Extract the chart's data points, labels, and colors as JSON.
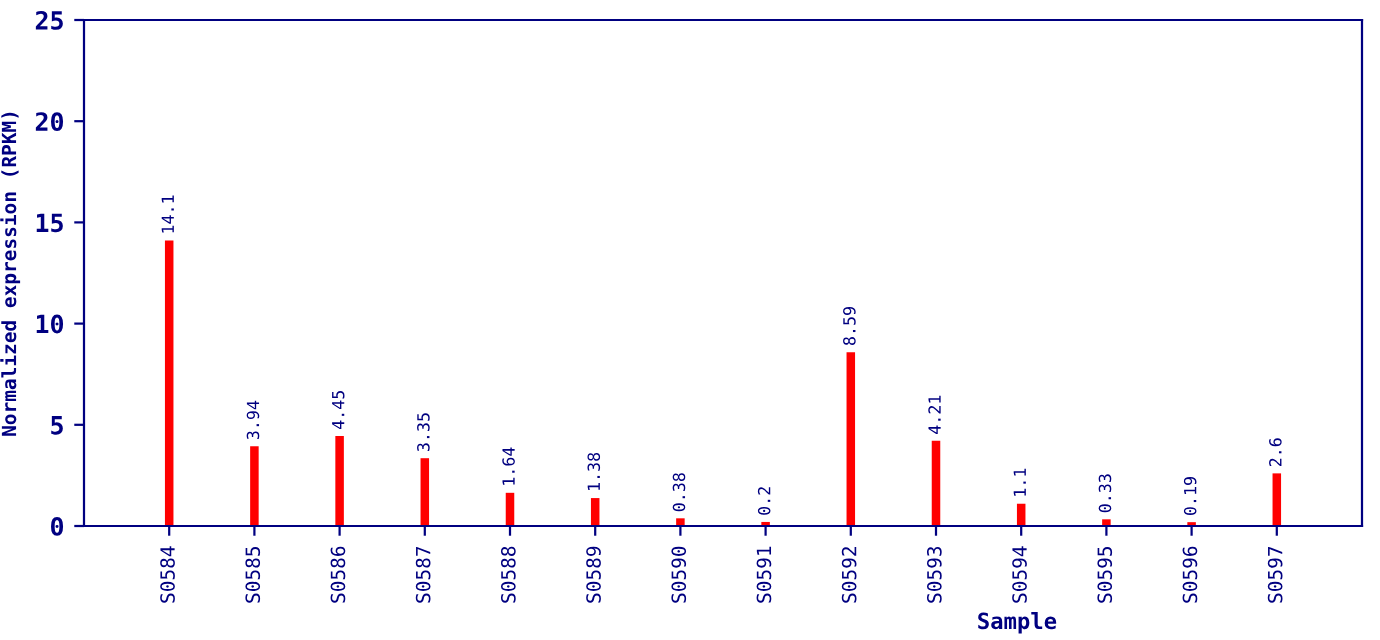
{
  "chart_data": {
    "type": "bar",
    "xlabel": "Sample",
    "ylabel": "Normalized expression (RPKM)",
    "categories": [
      "S0584",
      "S0585",
      "S0586",
      "S0587",
      "S0588",
      "S0589",
      "S0590",
      "S0591",
      "S0592",
      "S0593",
      "S0594",
      "S0595",
      "S0596",
      "S0597"
    ],
    "values": [
      14.1,
      3.94,
      4.45,
      3.35,
      1.64,
      1.38,
      0.38,
      0.2,
      8.59,
      4.21,
      1.1,
      0.33,
      0.19,
      2.6
    ],
    "color": "#ff0000",
    "ylim": [
      0,
      25
    ],
    "yticks": [
      0,
      5,
      10,
      15,
      20,
      25
    ],
    "grid": false,
    "data_labels": true
  }
}
